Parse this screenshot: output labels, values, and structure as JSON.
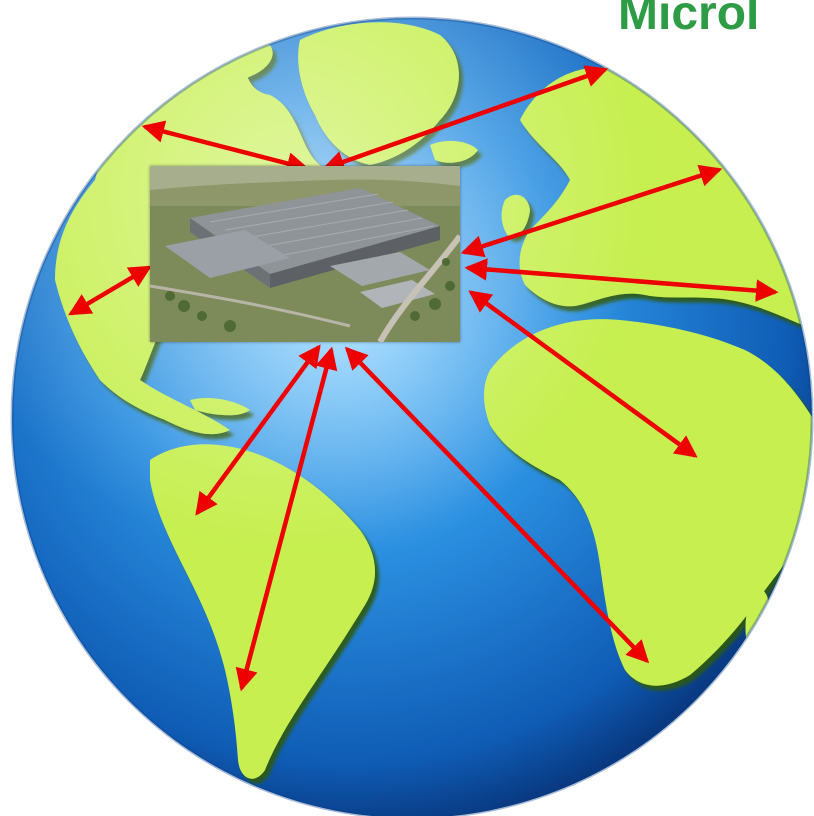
{
  "headline": {
    "text": "Microl"
  },
  "colors": {
    "ocean_light": "#6fc3ff",
    "ocean_mid": "#1f7fd6",
    "ocean_dark": "#0a3f8a",
    "land": "#c6ef4f",
    "land_shadow": "#5c8a1e",
    "arrow": "#ee0000",
    "headline": "#2e9b45"
  },
  "icons": {
    "hub_photo": "factory-aerial-render-image",
    "arrow": "double-headed-arrow"
  }
}
